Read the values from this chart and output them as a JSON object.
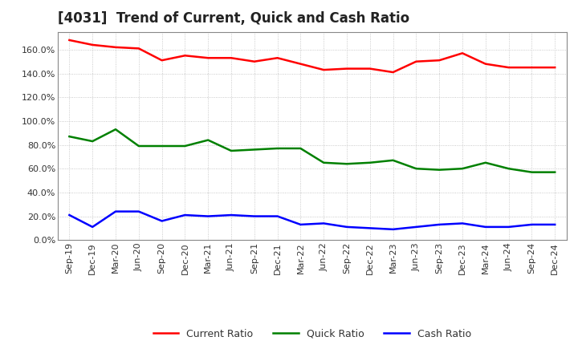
{
  "title": "[4031]  Trend of Current, Quick and Cash Ratio",
  "x_labels": [
    "Sep-19",
    "Dec-19",
    "Mar-20",
    "Jun-20",
    "Sep-20",
    "Dec-20",
    "Mar-21",
    "Jun-21",
    "Sep-21",
    "Dec-21",
    "Mar-22",
    "Jun-22",
    "Sep-22",
    "Dec-22",
    "Mar-23",
    "Jun-23",
    "Sep-23",
    "Dec-23",
    "Mar-24",
    "Jun-24",
    "Sep-24",
    "Dec-24"
  ],
  "current_ratio": [
    168,
    164,
    162,
    161,
    151,
    155,
    153,
    153,
    150,
    153,
    148,
    143,
    144,
    144,
    141,
    150,
    151,
    157,
    148,
    145,
    145,
    145
  ],
  "quick_ratio": [
    87,
    83,
    93,
    79,
    79,
    79,
    84,
    75,
    76,
    77,
    77,
    65,
    64,
    65,
    67,
    60,
    59,
    60,
    65,
    60,
    57,
    57
  ],
  "cash_ratio": [
    21,
    11,
    24,
    24,
    16,
    21,
    20,
    21,
    20,
    20,
    13,
    14,
    11,
    10,
    9,
    11,
    13,
    14,
    11,
    11,
    13,
    13
  ],
  "current_color": "#FF0000",
  "quick_color": "#008000",
  "cash_color": "#0000FF",
  "line_width": 1.8,
  "ylim": [
    0,
    175
  ],
  "yticks": [
    0,
    20,
    40,
    60,
    80,
    100,
    120,
    140,
    160
  ],
  "background_color": "#FFFFFF",
  "grid_color": "#BBBBBB",
  "legend_labels": [
    "Current Ratio",
    "Quick Ratio",
    "Cash Ratio"
  ],
  "title_fontsize": 12,
  "tick_fontsize": 8,
  "legend_fontsize": 9
}
